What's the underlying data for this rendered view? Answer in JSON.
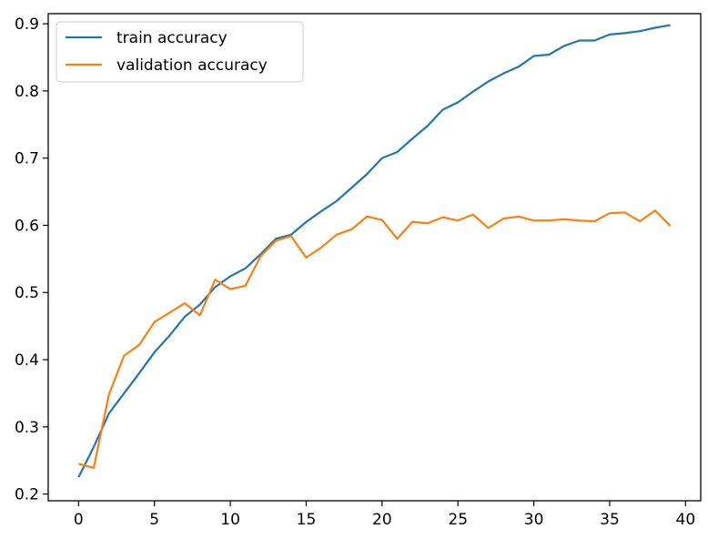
{
  "chart_data": {
    "type": "line",
    "title": "",
    "xlabel": "",
    "ylabel": "",
    "xlim": [
      -2,
      41
    ],
    "ylim": [
      0.19,
      0.915
    ],
    "xticks": [
      0,
      5,
      10,
      15,
      20,
      25,
      30,
      35,
      40
    ],
    "yticks": [
      0.2,
      0.3,
      0.4,
      0.5,
      0.6,
      0.7,
      0.8,
      0.9
    ],
    "grid": false,
    "legend_position": "top-left",
    "x": [
      0,
      1,
      2,
      3,
      4,
      5,
      6,
      7,
      8,
      9,
      10,
      11,
      12,
      13,
      14,
      15,
      16,
      17,
      18,
      19,
      20,
      21,
      22,
      23,
      24,
      25,
      26,
      27,
      28,
      29,
      30,
      31,
      32,
      33,
      34,
      35,
      36,
      37,
      38,
      39
    ],
    "series": [
      {
        "name": "train accuracy",
        "color": "#1f77b4",
        "values": [
          0.225,
          0.27,
          0.32,
          0.35,
          0.38,
          0.411,
          0.436,
          0.464,
          0.482,
          0.508,
          0.524,
          0.536,
          0.557,
          0.58,
          0.586,
          0.605,
          0.621,
          0.636,
          0.656,
          0.676,
          0.7,
          0.709,
          0.729,
          0.748,
          0.772,
          0.783,
          0.799,
          0.814,
          0.826,
          0.836,
          0.852,
          0.854,
          0.867,
          0.875,
          0.875,
          0.884,
          0.886,
          0.889,
          0.894,
          0.898
        ]
      },
      {
        "name": "validation accuracy",
        "color": "#ff7f0e",
        "values": [
          0.245,
          0.239,
          0.348,
          0.406,
          0.422,
          0.456,
          0.47,
          0.484,
          0.466,
          0.519,
          0.505,
          0.51,
          0.554,
          0.577,
          0.584,
          0.552,
          0.567,
          0.586,
          0.594,
          0.613,
          0.608,
          0.58,
          0.605,
          0.603,
          0.612,
          0.607,
          0.616,
          0.596,
          0.61,
          0.613,
          0.607,
          0.607,
          0.609,
          0.607,
          0.606,
          0.618,
          0.619,
          0.606,
          0.622,
          0.599
        ]
      }
    ]
  }
}
